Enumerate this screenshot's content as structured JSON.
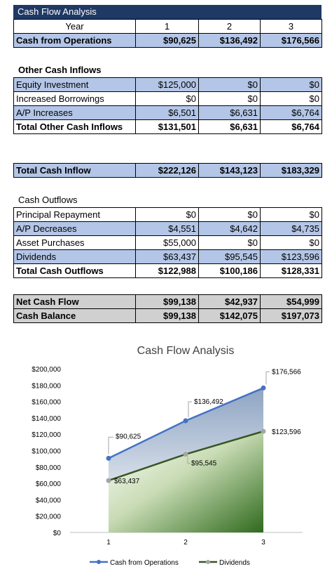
{
  "header": {
    "title": "Cash Flow Analysis"
  },
  "table1": {
    "year_label": "Year",
    "years": [
      "1",
      "2",
      "3"
    ],
    "ops": {
      "label": "Cash from Operations",
      "values": [
        "$90,625",
        "$136,492",
        "$176,566"
      ]
    }
  },
  "other_inflows": {
    "title": "Other Cash Inflows",
    "rows": [
      {
        "label": "Equity Investment",
        "values": [
          "$125,000",
          "$0",
          "$0"
        ]
      },
      {
        "label": "Increased Borrowings",
        "values": [
          "$0",
          "$0",
          "$0"
        ]
      },
      {
        "label": "A/P Increases",
        "values": [
          "$6,501",
          "$6,631",
          "$6,764"
        ]
      }
    ],
    "total": {
      "label": "Total Other Cash Inflows",
      "values": [
        "$131,501",
        "$6,631",
        "$6,764"
      ]
    }
  },
  "total_inflow": {
    "label": "Total Cash Inflow",
    "values": [
      "$222,126",
      "$143,123",
      "$183,329"
    ]
  },
  "outflows": {
    "title": "Cash Outflows",
    "rows": [
      {
        "label": "Principal Repayment",
        "values": [
          "$0",
          "$0",
          "$0"
        ]
      },
      {
        "label": "A/P Decreases",
        "values": [
          "$4,551",
          "$4,642",
          "$4,735"
        ]
      },
      {
        "label": "Asset Purchases",
        "values": [
          "$55,000",
          "$0",
          "$0"
        ]
      },
      {
        "label": "Dividends",
        "values": [
          "$63,437",
          "$95,545",
          "$123,596"
        ]
      }
    ],
    "total": {
      "label": "Total Cash Outflows",
      "values": [
        "$122,988",
        "$100,186",
        "$128,331"
      ]
    }
  },
  "net": {
    "net_cash_flow": {
      "label": "Net Cash Flow",
      "values": [
        "$99,138",
        "$42,937",
        "$54,999"
      ]
    },
    "cash_balance": {
      "label": "Cash Balance",
      "values": [
        "$99,138",
        "$142,075",
        "$197,073"
      ]
    }
  },
  "chart_data": {
    "type": "area",
    "title": "Cash Flow Analysis",
    "categories": [
      "1",
      "2",
      "3"
    ],
    "series": [
      {
        "name": "Cash from Operations",
        "values": [
          90625,
          136492,
          176566
        ],
        "labels": [
          "$90,625",
          "$136,492",
          "$176,566"
        ],
        "color": "#4472c4"
      },
      {
        "name": "Dividends",
        "values": [
          63437,
          95545,
          123596
        ],
        "labels": [
          "$63,437",
          "$95,545",
          "$123,596"
        ],
        "color": "#375623"
      }
    ],
    "ylim": [
      0,
      200000
    ],
    "yticks": [
      0,
      20000,
      40000,
      60000,
      80000,
      100000,
      120000,
      140000,
      160000,
      180000,
      200000
    ],
    "ytick_labels": [
      "$0",
      "$20,000",
      "$40,000",
      "$60,000",
      "$80,000",
      "$100,000",
      "$120,000",
      "$140,000",
      "$160,000",
      "$180,000",
      "$200,000"
    ],
    "grid": false,
    "legend": "bottom"
  }
}
